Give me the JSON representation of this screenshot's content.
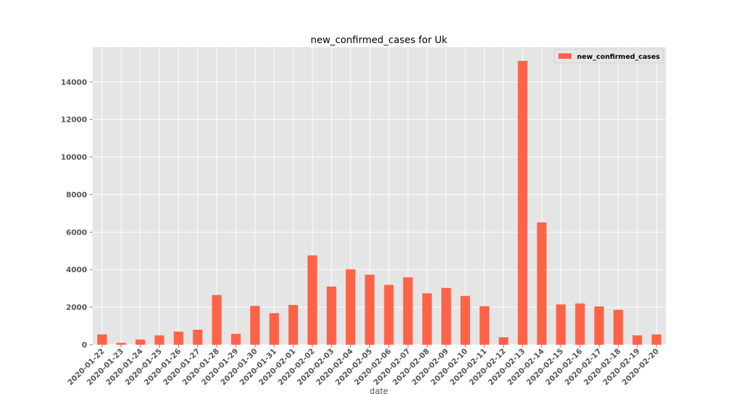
{
  "chart_data": {
    "type": "bar",
    "title": "new_confirmed_cases for Uk",
    "xlabel": "date",
    "ylabel": "",
    "ylim": [
      0,
      15850
    ],
    "yticks": [
      0,
      2000,
      4000,
      6000,
      8000,
      10000,
      12000,
      14000
    ],
    "grid": true,
    "legend_position": "top-right",
    "categories": [
      "2020-01-22",
      "2020-01-23",
      "2020-01-24",
      "2020-01-25",
      "2020-01-26",
      "2020-01-27",
      "2020-01-28",
      "2020-01-29",
      "2020-01-30",
      "2020-01-31",
      "2020-02-01",
      "2020-02-02",
      "2020-02-03",
      "2020-02-04",
      "2020-02-05",
      "2020-02-06",
      "2020-02-07",
      "2020-02-08",
      "2020-02-09",
      "2020-02-10",
      "2020-02-11",
      "2020-02-12",
      "2020-02-13",
      "2020-02-14",
      "2020-02-15",
      "2020-02-16",
      "2020-02-17",
      "2020-02-18",
      "2020-02-19",
      "2020-02-20"
    ],
    "series": [
      {
        "name": "new_confirmed_cases",
        "color": "#ff6347",
        "values": [
          550,
          100,
          280,
          500,
          700,
          800,
          2650,
          580,
          2070,
          1680,
          2120,
          4760,
          3100,
          4020,
          3730,
          3190,
          3590,
          2740,
          3030,
          2600,
          2050,
          400,
          15120,
          6520,
          2150,
          2200,
          2040,
          1860,
          500,
          550
        ]
      }
    ]
  }
}
